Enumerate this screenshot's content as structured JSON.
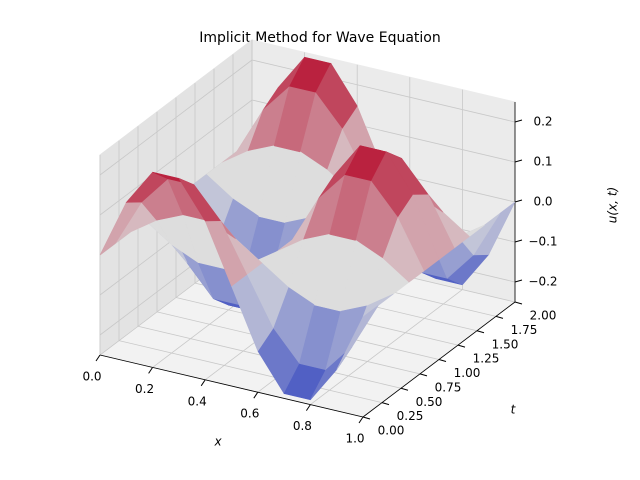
{
  "chart_data": {
    "type": "surface",
    "title": "Implicit Method for Wave Equation",
    "x_label": "x",
    "y_label": "t",
    "z_label": "u(x, t)",
    "colormap": "coolwarm",
    "x": [
      0,
      0.1,
      0.2,
      0.3,
      0.4,
      0.5,
      0.6,
      0.7,
      0.8,
      0.9,
      1
    ],
    "y": [
      0,
      0.2,
      0.4,
      0.6,
      0.8,
      1,
      1.2,
      1.4,
      1.6,
      1.8,
      2
    ],
    "z": [
      [
        0,
        0.147,
        0.238,
        0.238,
        0.147,
        0,
        -0.147,
        -0.238,
        -0.238,
        -0.147,
        0
      ],
      [
        0,
        0.119,
        0.193,
        0.193,
        0.119,
        0,
        -0.119,
        -0.193,
        -0.193,
        -0.119,
        0
      ],
      [
        0,
        0.045,
        0.074,
        0.074,
        0.045,
        0,
        -0.045,
        -0.074,
        -0.074,
        -0.045,
        0
      ],
      [
        0,
        -0.045,
        -0.074,
        -0.074,
        -0.045,
        0,
        0.045,
        0.074,
        0.074,
        0.045,
        0
      ],
      [
        0,
        -0.119,
        -0.193,
        -0.193,
        -0.119,
        0,
        0.119,
        0.193,
        0.193,
        0.119,
        0
      ],
      [
        0,
        -0.147,
        -0.238,
        -0.238,
        -0.147,
        0,
        0.147,
        0.238,
        0.238,
        0.147,
        0
      ],
      [
        0,
        -0.119,
        -0.193,
        -0.193,
        -0.119,
        0,
        0.119,
        0.193,
        0.193,
        0.119,
        0
      ],
      [
        0,
        -0.045,
        -0.074,
        -0.074,
        -0.045,
        0,
        0.045,
        0.074,
        0.074,
        0.045,
        0
      ],
      [
        0,
        0.045,
        0.074,
        0.074,
        0.045,
        0,
        -0.045,
        -0.074,
        -0.074,
        -0.045,
        0
      ],
      [
        0,
        0.119,
        0.193,
        0.193,
        0.119,
        0,
        -0.119,
        -0.193,
        -0.193,
        -0.119,
        0
      ],
      [
        0,
        0.147,
        0.238,
        0.238,
        0.147,
        0,
        -0.147,
        -0.238,
        -0.238,
        -0.147,
        0
      ]
    ],
    "xlim": [
      0,
      1
    ],
    "ylim": [
      0,
      2
    ],
    "zlim": [
      -0.25,
      0.25
    ],
    "xticks": [
      {
        "value": 0,
        "label": "0.0"
      },
      0.2,
      0.4,
      0.6,
      0.8,
      {
        "value": 1,
        "label": "1.0"
      }
    ],
    "yticks": [
      {
        "value": 0,
        "label": "0.00"
      },
      0.25,
      {
        "value": 0.5,
        "label": "0.50"
      },
      0.75,
      {
        "value": 1,
        "label": "1.00"
      },
      1.25,
      {
        "value": 1.5,
        "label": "1.50"
      },
      1.75,
      {
        "value": 2,
        "label": "2.00"
      }
    ],
    "zticks": [
      {
        "value": -0.2,
        "label": "−0.2"
      },
      {
        "value": -0.1,
        "label": "−0.1"
      },
      {
        "value": 0,
        "label": "0.0"
      },
      0.1,
      0.2
    ],
    "grid": true
  }
}
